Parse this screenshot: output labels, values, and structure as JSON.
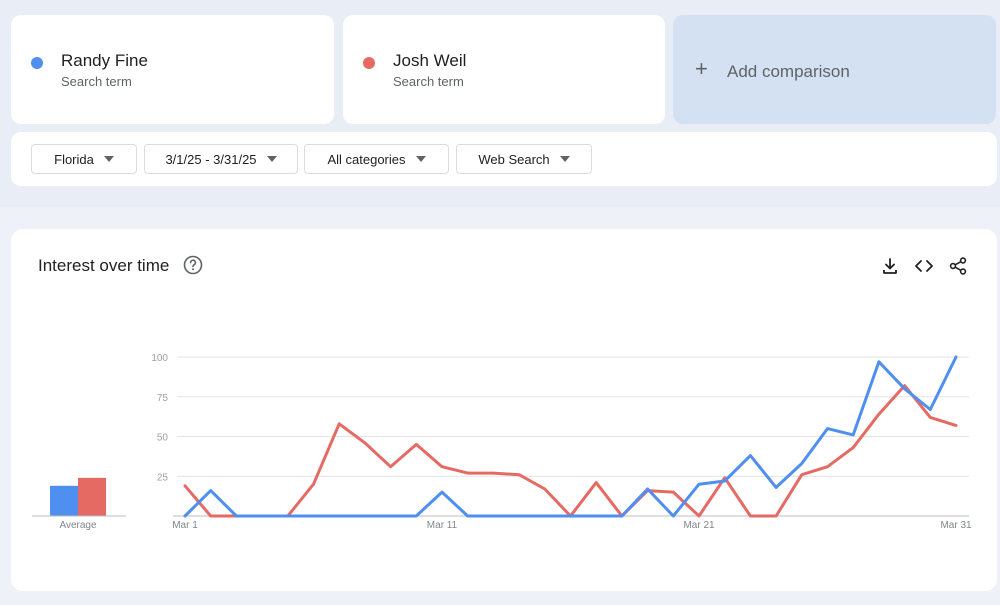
{
  "terms": [
    {
      "name": "Randy Fine",
      "subtitle": "Search term",
      "color": "#4e8ff0"
    },
    {
      "name": "Josh Weil",
      "subtitle": "Search term",
      "color": "#e66a64"
    }
  ],
  "add_comparison": {
    "label": "Add comparison",
    "icon": "plus-icon"
  },
  "filters": {
    "region": "Florida",
    "date_range": "3/1/25 - 3/31/25",
    "category": "All categories",
    "search_type": "Web Search"
  },
  "card": {
    "title": "Interest over time",
    "icons": [
      "help-icon",
      "download-icon",
      "embed-code-icon",
      "share-icon"
    ]
  },
  "chart_data": {
    "type": "line",
    "x": [
      "Mar 1",
      "Mar 2",
      "Mar 3",
      "Mar 4",
      "Mar 5",
      "Mar 6",
      "Mar 7",
      "Mar 8",
      "Mar 9",
      "Mar 10",
      "Mar 11",
      "Mar 12",
      "Mar 13",
      "Mar 14",
      "Mar 15",
      "Mar 16",
      "Mar 17",
      "Mar 18",
      "Mar 19",
      "Mar 20",
      "Mar 21",
      "Mar 22",
      "Mar 23",
      "Mar 24",
      "Mar 25",
      "Mar 26",
      "Mar 27",
      "Mar 28",
      "Mar 29",
      "Mar 30",
      "Mar 31"
    ],
    "x_tick_labels": [
      "Mar 1",
      "Mar 11",
      "Mar 21",
      "Mar 31"
    ],
    "y_ticks": [
      25,
      50,
      75,
      100
    ],
    "ylim": [
      0,
      100
    ],
    "grid": true,
    "series": [
      {
        "name": "Randy Fine",
        "color": "#4e8ff0",
        "values": [
          0,
          16,
          0,
          0,
          0,
          0,
          0,
          0,
          0,
          0,
          15,
          0,
          0,
          0,
          0,
          0,
          0,
          0,
          17,
          0,
          20,
          22,
          38,
          18,
          33,
          55,
          51,
          97,
          80,
          67,
          100
        ]
      },
      {
        "name": "Josh Weil",
        "color": "#e66a64",
        "values": [
          19,
          0,
          0,
          0,
          0,
          20,
          58,
          46,
          31,
          45,
          31,
          27,
          27,
          26,
          17,
          0,
          21,
          0,
          16,
          15,
          0,
          24,
          0,
          0,
          26,
          31,
          43,
          64,
          82,
          62,
          57
        ]
      }
    ],
    "average": {
      "label": "Average",
      "values": [
        19,
        24
      ]
    }
  }
}
